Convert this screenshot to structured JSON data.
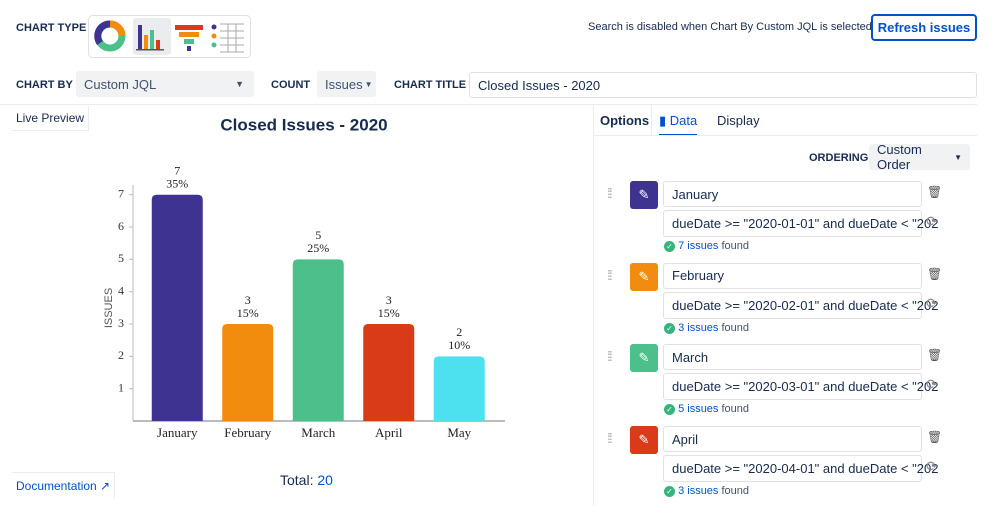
{
  "toolbar": {
    "chart_type_label": "CHART TYPE",
    "search_note": "Search is disabled when Chart By Custom JQL is selected",
    "refresh_button": "Refresh issues"
  },
  "controls": {
    "chart_by_label": "CHART BY",
    "chart_by_value": "Custom JQL",
    "count_label": "COUNT",
    "count_value": "Issues",
    "chart_title_label": "CHART TITLE",
    "chart_title_value": "Closed Issues - 2020"
  },
  "preview": {
    "label": "Live Preview",
    "documentation": "Documentation",
    "total_label": "Total:",
    "total_value": 20
  },
  "chart_data": {
    "type": "bar",
    "title": "Closed Issues - 2020",
    "y_label": "ISSUES",
    "categories": [
      "January",
      "February",
      "March",
      "April",
      "May"
    ],
    "values": [
      7,
      3,
      5,
      3,
      2
    ],
    "percent_labels": [
      "35%",
      "15%",
      "25%",
      "15%",
      "10%"
    ],
    "colors": [
      "#3f3391",
      "#f28c0f",
      "#4dbf8a",
      "#d93a17",
      "#4de1f0"
    ],
    "ylim": [
      0,
      7.3
    ],
    "yticks": [
      1,
      2,
      3,
      4,
      5,
      6,
      7
    ]
  },
  "data_panel": {
    "tabs": [
      "Options",
      "Data",
      "Display"
    ],
    "ordering_label": "ORDERING",
    "ordering_value": "Custom Order",
    "items": [
      {
        "name": "January",
        "query": "dueDate >= \"2020-01-01\" and dueDate < \"202",
        "count": 7,
        "count_unit": "issues",
        "found": "found"
      },
      {
        "name": "February",
        "query": "dueDate >= \"2020-02-01\" and dueDate < \"202",
        "count": 3,
        "count_unit": "issues",
        "found": "found"
      },
      {
        "name": "March",
        "query": "dueDate >= \"2020-03-01\" and dueDate < \"202",
        "count": 5,
        "count_unit": "issues",
        "found": "found"
      },
      {
        "name": "April",
        "query": "dueDate >= \"2020-04-01\" and dueDate < \"202",
        "count": 3,
        "count_unit": "issues",
        "found": "found"
      }
    ]
  }
}
